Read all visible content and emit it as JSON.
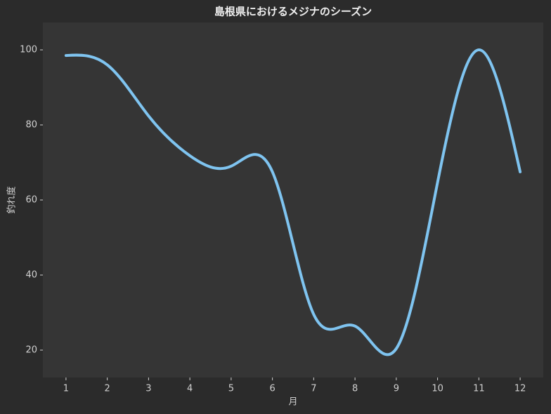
{
  "chart_data": {
    "type": "line",
    "title": "島根県におけるメジナのシーズン",
    "x_label": "月",
    "y_label": "釣れ度",
    "x": [
      1,
      2,
      3,
      4,
      5,
      6,
      7,
      8,
      9,
      10,
      11,
      12
    ],
    "series": [
      {
        "name": "釣れ度",
        "color": "#7fc4f0",
        "values": [
          98.5,
          96,
          82.4,
          71.8,
          69,
          67.5,
          29.5,
          26.4,
          20.4,
          64.7,
          100,
          67.5
        ]
      }
    ],
    "xlim": [
      0.44,
      12.56
    ],
    "ylim": [
      12.7,
      107.3
    ],
    "xticks": [
      1,
      2,
      3,
      4,
      5,
      6,
      7,
      8,
      9,
      10,
      11,
      12
    ],
    "yticks": [
      20,
      40,
      60,
      80,
      100
    ],
    "grid": false
  }
}
